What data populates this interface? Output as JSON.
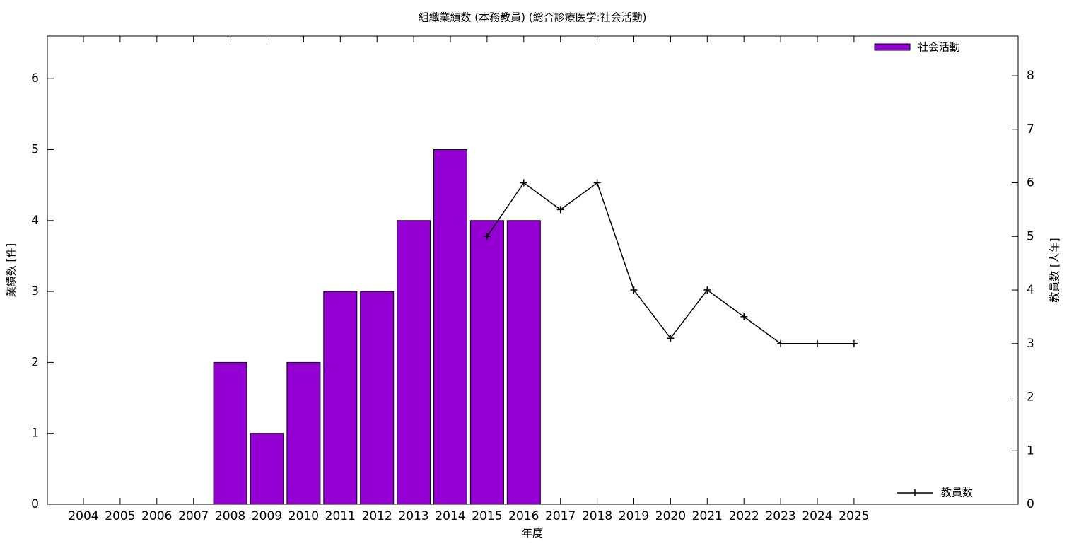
{
  "chart_data": {
    "type": "bar_line",
    "title": "組織業績数 (本務教員) (総合診療医学:社会活動)",
    "x_label": "年度",
    "y_label": "業績数 [件]",
    "y2_label": "教員数 [人年]",
    "categories": [
      "2004",
      "2005",
      "2006",
      "2007",
      "2008",
      "2009",
      "2010",
      "2011",
      "2012",
      "2013",
      "2014",
      "2015",
      "2016",
      "2017",
      "2018",
      "2019",
      "2020",
      "2021",
      "2022",
      "2023",
      "2024",
      "2025"
    ],
    "series": [
      {
        "name": "社会活動",
        "type": "bar",
        "color": "#9400d3",
        "values": [
          null,
          null,
          null,
          null,
          2,
          1,
          2,
          3,
          3,
          4,
          5,
          4,
          4,
          null,
          null,
          null,
          null,
          null,
          null,
          null,
          null,
          null
        ]
      },
      {
        "name": "教員数",
        "type": "line",
        "axis": "y2",
        "color": "#000000",
        "values": [
          null,
          null,
          null,
          null,
          null,
          null,
          null,
          null,
          null,
          null,
          null,
          5,
          6,
          5.5,
          6,
          4,
          3.1,
          4,
          3.5,
          3,
          3,
          3
        ]
      }
    ],
    "ylim": [
      0,
      6.6
    ],
    "yticks": [
      0,
      1,
      2,
      3,
      4,
      5,
      6
    ],
    "y2lim": [
      0,
      8.74
    ],
    "y2ticks": [
      0,
      1,
      2,
      3,
      4,
      5,
      6,
      7,
      8
    ]
  }
}
